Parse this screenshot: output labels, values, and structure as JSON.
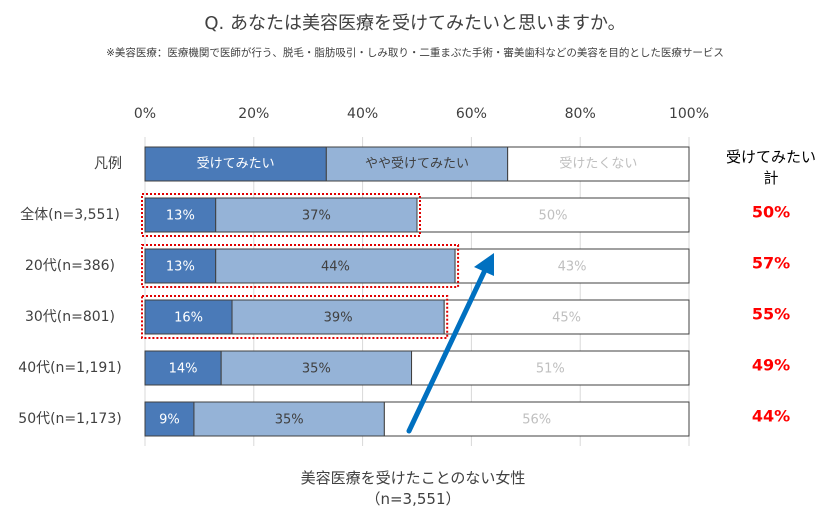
{
  "title": "Q. あなたは美容医療を受けてみたいと思いますか。",
  "note": "※美容医療：医療機関で医師が行う、脱毛・脂肪吸引・しみ取り・二重まぶた手術・審美歯科などの美容を目的とした医療サービス",
  "footer": {
    "line1": "美容医療を受けたことのない女性",
    "line2": "（n=3,551）"
  },
  "total_header": {
    "line1": "受けてみたい",
    "line2": "計"
  },
  "colors": {
    "want": "#4a7ab8",
    "somewhat": "#95b3d7",
    "not": "#ffffff",
    "total_text": "#ff0000",
    "highlight": "#e00000",
    "arrow": "#0070c0"
  },
  "chart_data": {
    "type": "bar",
    "orientation": "horizontal",
    "stacked": "percent",
    "xlim": [
      0,
      100
    ],
    "x_ticks": [
      "0%",
      "20%",
      "40%",
      "60%",
      "80%",
      "100%"
    ],
    "legend": {
      "label": "凡例",
      "items": [
        "受けてみたい",
        "やや受けてみたい",
        "受けたくない"
      ]
    },
    "categories": [
      "全体(n=3,551)",
      "20代(n=386)",
      "30代(n=801)",
      "40代(n=1,191)",
      "50代(n=1,173)"
    ],
    "series": [
      {
        "name": "受けてみたい",
        "values": [
          13,
          13,
          16,
          14,
          9
        ],
        "labels": [
          "13%",
          "13%",
          "16%",
          "14%",
          "9%"
        ]
      },
      {
        "name": "やや受けてみたい",
        "values": [
          37,
          44,
          39,
          35,
          35
        ],
        "labels": [
          "37%",
          "44%",
          "39%",
          "35%",
          "35%"
        ]
      },
      {
        "name": "受けたくない",
        "values": [
          50,
          43,
          45,
          51,
          56
        ],
        "labels": [
          "50%",
          "43%",
          "45%",
          "51%",
          "56%"
        ]
      }
    ],
    "totals": [
      "50%",
      "57%",
      "55%",
      "49%",
      "44%"
    ],
    "highlighted_rows": [
      0,
      1,
      2
    ],
    "grid": true
  }
}
